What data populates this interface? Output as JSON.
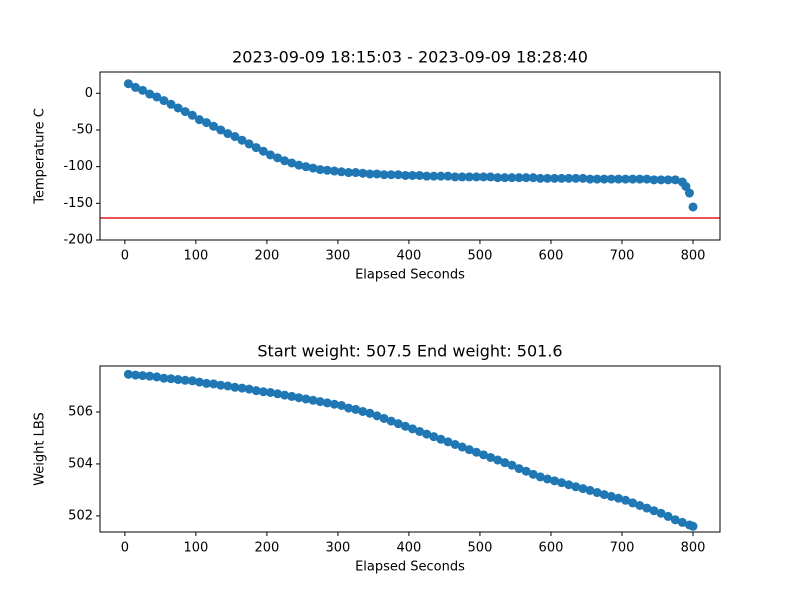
{
  "chart_data": [
    {
      "type": "scatter",
      "title": "2023-09-09 18:15:03 - 2023-09-09 18:28:40",
      "x_label": "Elapsed Seconds",
      "y_label": "Temperature C",
      "color": "#1f77b4",
      "x": [
        5,
        15,
        25,
        35,
        45,
        55,
        65,
        75,
        85,
        95,
        105,
        115,
        125,
        135,
        145,
        155,
        165,
        175,
        185,
        195,
        205,
        215,
        225,
        235,
        245,
        255,
        265,
        275,
        285,
        295,
        305,
        315,
        325,
        335,
        345,
        355,
        365,
        375,
        385,
        395,
        405,
        415,
        425,
        435,
        445,
        455,
        465,
        475,
        485,
        495,
        505,
        515,
        525,
        535,
        545,
        555,
        565,
        575,
        585,
        595,
        605,
        615,
        625,
        635,
        645,
        655,
        665,
        675,
        685,
        695,
        705,
        715,
        725,
        735,
        745,
        755,
        765,
        775,
        785,
        790,
        795,
        800
      ],
      "values": [
        13,
        8,
        4,
        -1,
        -5,
        -10,
        -15,
        -20,
        -25,
        -30,
        -36,
        -40,
        -45,
        -50,
        -55,
        -59,
        -64,
        -69,
        -74,
        -79,
        -84,
        -88,
        -92,
        -95,
        -98,
        -100,
        -102,
        -104,
        -105,
        -106,
        -107,
        -108,
        -108,
        -109,
        -110,
        -110,
        -111,
        -111,
        -111,
        -112,
        -112,
        -112,
        -113,
        -113,
        -113,
        -113,
        -114,
        -114,
        -114,
        -114,
        -114,
        -114,
        -115,
        -115,
        -115,
        -115,
        -115,
        -115,
        -116,
        -116,
        -116,
        -116,
        -116,
        -116,
        -116,
        -117,
        -117,
        -117,
        -117,
        -117,
        -117,
        -117,
        -117,
        -117,
        -118,
        -118,
        -118,
        -118,
        -121,
        -127,
        -136,
        -155
      ],
      "reference_line": {
        "value": -170,
        "color": "#e41a1c"
      },
      "xlim": [
        -35,
        838
      ],
      "xticks": [
        0,
        100,
        200,
        300,
        400,
        500,
        600,
        700,
        800
      ],
      "ylim": [
        -200,
        29
      ],
      "yticks": [
        -200,
        -150,
        -100,
        -50,
        0
      ]
    },
    {
      "type": "scatter",
      "title": "Start weight: 507.5 End weight: 501.6",
      "x_label": "Elapsed Seconds",
      "y_label": "Weight LBS",
      "color": "#1f77b4",
      "x": [
        5,
        15,
        25,
        35,
        45,
        55,
        65,
        75,
        85,
        95,
        105,
        115,
        125,
        135,
        145,
        155,
        165,
        175,
        185,
        195,
        205,
        215,
        225,
        235,
        245,
        255,
        265,
        275,
        285,
        295,
        305,
        315,
        325,
        335,
        345,
        355,
        365,
        375,
        385,
        395,
        405,
        415,
        425,
        435,
        445,
        455,
        465,
        475,
        485,
        495,
        505,
        515,
        525,
        535,
        545,
        555,
        565,
        575,
        585,
        595,
        605,
        615,
        625,
        635,
        645,
        655,
        665,
        675,
        685,
        695,
        705,
        715,
        725,
        735,
        745,
        755,
        765,
        775,
        785,
        795,
        800
      ],
      "values": [
        507.45,
        507.42,
        507.4,
        507.38,
        507.35,
        507.3,
        507.28,
        507.25,
        507.22,
        507.2,
        507.15,
        507.1,
        507.08,
        507.03,
        507.0,
        506.95,
        506.92,
        506.88,
        506.82,
        506.78,
        506.75,
        506.7,
        506.65,
        506.6,
        506.55,
        506.5,
        506.45,
        506.4,
        506.35,
        506.3,
        506.25,
        506.15,
        506.1,
        506.02,
        505.95,
        505.85,
        505.75,
        505.65,
        505.55,
        505.45,
        505.35,
        505.25,
        505.15,
        505.05,
        504.95,
        504.85,
        504.75,
        504.65,
        504.55,
        504.45,
        504.35,
        504.25,
        504.15,
        504.05,
        503.95,
        503.82,
        503.72,
        503.6,
        503.5,
        503.42,
        503.35,
        503.28,
        503.2,
        503.12,
        503.05,
        502.98,
        502.9,
        502.82,
        502.75,
        502.68,
        502.6,
        502.5,
        502.4,
        502.3,
        502.2,
        502.1,
        501.98,
        501.85,
        501.75,
        501.65,
        501.6
      ],
      "xlim": [
        -35,
        838
      ],
      "xticks": [
        0,
        100,
        200,
        300,
        400,
        500,
        600,
        700,
        800
      ],
      "ylim": [
        501.38,
        507.77
      ],
      "yticks": [
        502,
        504,
        506
      ]
    }
  ]
}
